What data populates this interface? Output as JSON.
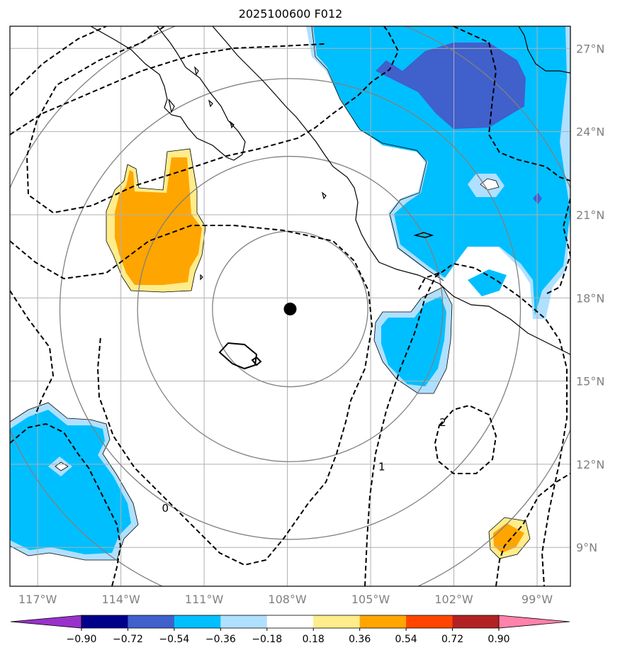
{
  "title": "2025100600 F012",
  "map": {
    "lon_range": [
      -118.0,
      -97.8
    ],
    "lat_range": [
      7.6,
      27.8
    ],
    "lon_ticks": [
      -117,
      -114,
      -111,
      -108,
      -105,
      -102,
      -99
    ],
    "lat_ticks": [
      9,
      12,
      15,
      18,
      21,
      24,
      27
    ],
    "lon_tick_labels": [
      "117°W",
      "114°W",
      "111°W",
      "108°W",
      "105°W",
      "102°W",
      "99°W"
    ],
    "lat_tick_labels": [
      "9°N",
      "12°N",
      "15°N",
      "18°N",
      "21°N",
      "24°N",
      "27°N"
    ],
    "grid": true,
    "center": {
      "lon": -107.9,
      "lat": 17.6
    },
    "range_rings_deg": [
      2.8,
      5.5,
      8.3,
      11.0
    ],
    "contour_labels": [
      {
        "text": "0",
        "lon": -112.4,
        "lat": 10.4
      },
      {
        "text": "1",
        "lon": -104.6,
        "lat": 11.9
      },
      {
        "text": "2",
        "lon": -102.4,
        "lat": 13.5
      }
    ]
  },
  "colorbar": {
    "levels": [
      -0.9,
      -0.72,
      -0.54,
      -0.36,
      -0.18,
      0.18,
      0.36,
      0.54,
      0.72,
      0.9
    ],
    "tick_labels": [
      "−0.90",
      "−0.72",
      "−0.54",
      "−0.36",
      "−0.18",
      "0.18",
      "0.36",
      "0.54",
      "0.72",
      "0.90"
    ],
    "colors": [
      "#9932cc",
      "#00008b",
      "#4060cc",
      "#00bfff",
      "#b0e0ff",
      "#ffffff",
      "#ffec8b",
      "#ffa500",
      "#ff4500",
      "#b22222",
      "#ff82ab"
    ],
    "extend": "both"
  },
  "colors": {
    "grid": "#b0b0b0",
    "rings": "#808080",
    "coast": "#000000",
    "contours": "#000000",
    "marker": "#000000"
  }
}
